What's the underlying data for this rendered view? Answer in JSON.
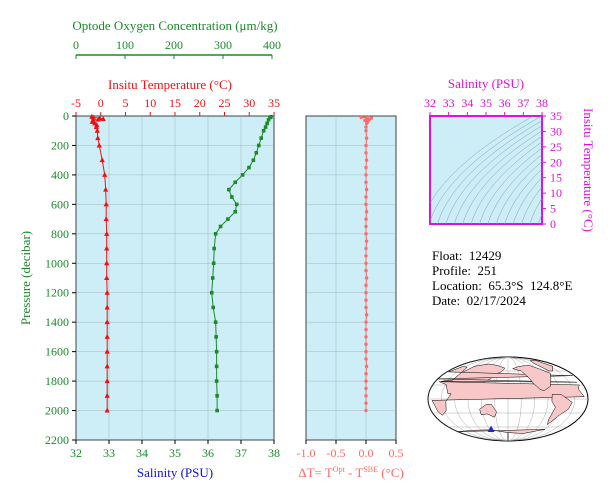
{
  "colors": {
    "panel_bg": "#cdeef7",
    "oxygen": "#1a8a2a",
    "temperature": "#ee1111",
    "salinity_axis": "#1111cc",
    "delta": "#ff6a6a",
    "ts": "#dd11dd",
    "map_land": "#f8c8c8",
    "map_marker": "#2222dd"
  },
  "chart_data": [
    {
      "name": "profile",
      "type": "scatter",
      "ylabel": "Pressure (decibar)",
      "ylim": [
        2200,
        0
      ],
      "yticks": [
        0,
        200,
        400,
        600,
        800,
        1000,
        1200,
        1400,
        1600,
        1800,
        2000,
        2200
      ],
      "axes": {
        "oxygen": {
          "label": "Optode Oxygen Concentration (μm/kg)",
          "ticks": [
            0,
            100,
            200,
            300,
            400
          ],
          "lim": [
            0,
            400
          ]
        },
        "temperature": {
          "label": "Insitu Temperature (°C)",
          "ticks": [
            -5,
            0,
            5,
            10,
            15,
            20,
            25,
            30,
            35
          ],
          "lim": [
            -5,
            35
          ]
        },
        "salinity": {
          "label": "Salinity (PSU)",
          "ticks": [
            32,
            33,
            34,
            35,
            36,
            37,
            38
          ],
          "lim": [
            32,
            38
          ]
        }
      },
      "series": [
        {
          "axis": "oxygen",
          "marker": "square",
          "p": [
            5,
            10,
            25,
            50,
            75,
            100,
            150,
            200,
            250,
            300,
            350,
            400,
            450,
            500,
            550,
            600,
            650,
            700,
            750,
            800,
            900,
            1000,
            1100,
            1200,
            1300,
            1400,
            1500,
            1600,
            1700,
            1800,
            1900,
            2000
          ],
          "values": [
            398,
            396,
            393,
            390,
            387,
            383,
            378,
            373,
            368,
            362,
            353,
            340,
            325,
            312,
            318,
            328,
            325,
            310,
            295,
            285,
            282,
            281,
            279,
            277,
            280,
            285,
            286,
            287,
            287,
            287,
            288,
            288
          ]
        },
        {
          "axis": "temperature",
          "marker": "triangle",
          "p": [
            5,
            10,
            15,
            20,
            25,
            30,
            40,
            50,
            60,
            75,
            100,
            150,
            200,
            300,
            400,
            500,
            600,
            700,
            800,
            900,
            1000,
            1100,
            1200,
            1300,
            1400,
            1500,
            1600,
            1700,
            1800,
            1900,
            2000
          ],
          "values": [
            -1.8,
            -1.5,
            -0.2,
            0.5,
            -0.5,
            -1.6,
            -1.7,
            -1.2,
            -0.8,
            -0.9,
            -0.7,
            -0.6,
            -0.3,
            0.3,
            0.8,
            1.0,
            1.1,
            1.1,
            1.2,
            1.2,
            1.2,
            1.2,
            1.3,
            1.3,
            1.3,
            1.3,
            1.3,
            1.3,
            1.3,
            1.3,
            1.3
          ]
        }
      ]
    },
    {
      "name": "delta",
      "type": "scatter",
      "xlabel": "ΔT= T",
      "xlabel_sup1": "Opt",
      "xlabel_mid": " - T",
      "xlabel_sup2": "SBE",
      "xlabel_end": " (°C)",
      "xticks": [
        "-1.0",
        "-0.5",
        "0.0",
        "0.5"
      ],
      "xlim": [
        -1.0,
        0.5
      ],
      "ylim": [
        2200,
        0
      ],
      "p": [
        5,
        10,
        15,
        20,
        25,
        30,
        40,
        50,
        75,
        100,
        150,
        200,
        250,
        300,
        350,
        400,
        450,
        500,
        550,
        600,
        650,
        700,
        750,
        800,
        850,
        900,
        950,
        1000,
        1050,
        1100,
        1150,
        1200,
        1250,
        1300,
        1350,
        1400,
        1450,
        1500,
        1550,
        1600,
        1650,
        1700,
        1750,
        1800,
        1850,
        1900,
        1950,
        2000
      ],
      "values": [
        0.02,
        -0.08,
        0.09,
        0.01,
        0.05,
        -0.02,
        0.03,
        0.01,
        0.0,
        0.0,
        0.01,
        0.0,
        0.0,
        0.01,
        0.0,
        0.0,
        0.0,
        0.01,
        0.0,
        0.0,
        0.01,
        0.0,
        0.0,
        0.0,
        0.01,
        0.0,
        0.0,
        0.0,
        0.0,
        0.01,
        0.0,
        0.0,
        0.0,
        0.0,
        0.01,
        0.0,
        0.0,
        0.0,
        0.0,
        0.0,
        0.0,
        0.01,
        0.0,
        0.0,
        0.0,
        0.0,
        0.0,
        0.0
      ]
    },
    {
      "name": "ts",
      "type": "line",
      "title": "Salinity (PSU)",
      "ylabel": "Insitu Temperature (°C)",
      "xticks": [
        32,
        33,
        34,
        35,
        36,
        37,
        38
      ],
      "yticks": [
        0,
        5,
        10,
        15,
        20,
        25,
        30,
        35
      ],
      "xlim": [
        32,
        38
      ],
      "ylim": [
        0,
        35
      ]
    }
  ],
  "float_info": {
    "float": "Float:  12429",
    "profile": "Profile:  251",
    "location": "Location:  65.3°S  124.8°E",
    "date": "Date:  02/17/2024"
  },
  "map": {
    "marker_lon": 124.8,
    "marker_lat": -65.3
  }
}
